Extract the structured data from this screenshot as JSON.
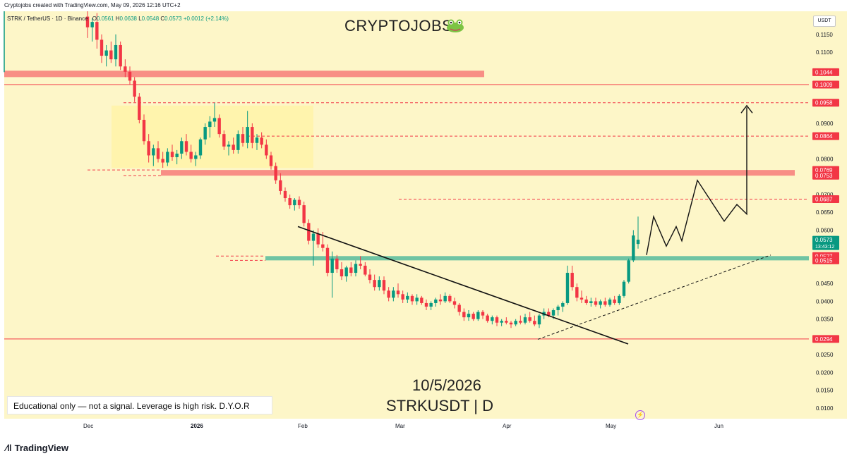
{
  "top_line": "Cryptojobs created with TradingView.com, May 09, 2026 12:16 UTC+2",
  "header": {
    "symbol": "STRK / TetherUS · 1D · Binance",
    "o_label": "O",
    "o_value": "0.0561",
    "h_label": "H",
    "h_value": "0.0638",
    "l_label": "L",
    "l_value": "0.0548",
    "c_label": "C",
    "c_value": "0.0573",
    "change": "+0.0012 (+2.14%)"
  },
  "brand": "CRYPTOJOBS",
  "currency_button": "USDT",
  "overlay": {
    "date": "10/5/2026",
    "symbol_tf": "STRKUSDT | D",
    "disclaimer": "Educational only — not a signal. Leverage is high risk. D.Y.O.R"
  },
  "footer": {
    "logo_text": "TradingView"
  },
  "colors": {
    "background": "#fdf6c8",
    "up": "#089981",
    "down": "#f23645",
    "resistance_zone": "#f7837d",
    "support_zone": "#5fbf9f",
    "highlight_box": "#fff3a8"
  },
  "icons": {
    "frog": "frog-icon",
    "bolt": "lightning-icon",
    "logo": "tradingview-logo-icon"
  },
  "chart_data": {
    "type": "candlestick",
    "title": "STRK / TetherUS · 1D · Binance",
    "x_ticks": [
      "Dec",
      "2026",
      "Feb",
      "Mar",
      "Apr",
      "May",
      "Jun"
    ],
    "y_ticks": [
      "0.1150",
      "0.1100",
      "0.1044",
      "0.1009",
      "0.0958",
      "0.0900",
      "0.0864",
      "0.0800",
      "0.0769",
      "0.0753",
      "0.0700",
      "0.0687",
      "0.0650",
      "0.0600",
      "0.0573",
      "0.0527",
      "0.0515",
      "0.0450",
      "0.0400",
      "0.0350",
      "0.0294",
      "0.0250",
      "0.0200",
      "0.0150",
      "0.0100"
    ],
    "ylim": [
      0.007,
      0.1215
    ],
    "price_labels": [
      {
        "value": 0.1044,
        "text": "0.1044",
        "color": "#f23645"
      },
      {
        "value": 0.1009,
        "text": "0.1009",
        "color": "#f23645"
      },
      {
        "value": 0.0958,
        "text": "0.0958",
        "color": "#f23645"
      },
      {
        "value": 0.0864,
        "text": "0.0864",
        "color": "#f23645"
      },
      {
        "value": 0.0769,
        "text": "0.0769",
        "color": "#f23645"
      },
      {
        "value": 0.0753,
        "text": "0.0753",
        "color": "#f23645"
      },
      {
        "value": 0.0687,
        "text": "0.0687",
        "color": "#f23645"
      },
      {
        "value": 0.0573,
        "text": "0.0573",
        "color": "#089981",
        "sub": "13:43:12"
      },
      {
        "value": 0.0527,
        "text": "0.0527",
        "color": "#f23645"
      },
      {
        "value": 0.0515,
        "text": "0.0515",
        "color": "#f23645"
      },
      {
        "value": 0.0294,
        "text": "0.0294",
        "color": "#f23645"
      }
    ],
    "zones": [
      {
        "from": 0.103,
        "to": 0.1048,
        "kind": "resistance"
      },
      {
        "from": 0.0753,
        "to": 0.0769,
        "kind": "resistance"
      },
      {
        "from": 0.0515,
        "to": 0.0527,
        "kind": "support"
      }
    ],
    "levels": [
      0.1009,
      0.0958,
      0.0864,
      0.0687,
      0.0294
    ],
    "consolidation_box": {
      "from": 0.0775,
      "to": 0.095
    },
    "candles": [
      {
        "o": 0.12,
        "h": 0.1215,
        "l": 0.114,
        "c": 0.117
      },
      {
        "o": 0.117,
        "h": 0.1195,
        "l": 0.113,
        "c": 0.1185
      },
      {
        "o": 0.1185,
        "h": 0.121,
        "l": 0.111,
        "c": 0.1135
      },
      {
        "o": 0.1135,
        "h": 0.115,
        "l": 0.107,
        "c": 0.109
      },
      {
        "o": 0.109,
        "h": 0.112,
        "l": 0.106,
        "c": 0.1105
      },
      {
        "o": 0.1105,
        "h": 0.113,
        "l": 0.107,
        "c": 0.108
      },
      {
        "o": 0.108,
        "h": 0.115,
        "l": 0.106,
        "c": 0.112
      },
      {
        "o": 0.112,
        "h": 0.113,
        "l": 0.105,
        "c": 0.106
      },
      {
        "o": 0.106,
        "h": 0.108,
        "l": 0.103,
        "c": 0.1045
      },
      {
        "o": 0.1045,
        "h": 0.106,
        "l": 0.101,
        "c": 0.102
      },
      {
        "o": 0.102,
        "h": 0.103,
        "l": 0.096,
        "c": 0.0975
      },
      {
        "o": 0.0975,
        "h": 0.0985,
        "l": 0.09,
        "c": 0.091
      },
      {
        "o": 0.091,
        "h": 0.0925,
        "l": 0.084,
        "c": 0.085
      },
      {
        "o": 0.085,
        "h": 0.087,
        "l": 0.079,
        "c": 0.081
      },
      {
        "o": 0.081,
        "h": 0.084,
        "l": 0.078,
        "c": 0.083
      },
      {
        "o": 0.083,
        "h": 0.085,
        "l": 0.079,
        "c": 0.08
      },
      {
        "o": 0.08,
        "h": 0.082,
        "l": 0.0775,
        "c": 0.079
      },
      {
        "o": 0.079,
        "h": 0.083,
        "l": 0.078,
        "c": 0.082
      },
      {
        "o": 0.082,
        "h": 0.084,
        "l": 0.0795,
        "c": 0.0805
      },
      {
        "o": 0.0805,
        "h": 0.0825,
        "l": 0.0785,
        "c": 0.0815
      },
      {
        "o": 0.0815,
        "h": 0.086,
        "l": 0.08,
        "c": 0.085
      },
      {
        "o": 0.085,
        "h": 0.087,
        "l": 0.081,
        "c": 0.082
      },
      {
        "o": 0.082,
        "h": 0.084,
        "l": 0.079,
        "c": 0.08
      },
      {
        "o": 0.08,
        "h": 0.082,
        "l": 0.078,
        "c": 0.081
      },
      {
        "o": 0.081,
        "h": 0.086,
        "l": 0.08,
        "c": 0.0855
      },
      {
        "o": 0.0855,
        "h": 0.09,
        "l": 0.084,
        "c": 0.089
      },
      {
        "o": 0.089,
        "h": 0.092,
        "l": 0.086,
        "c": 0.0905
      },
      {
        "o": 0.0905,
        "h": 0.0958,
        "l": 0.089,
        "c": 0.0915
      },
      {
        "o": 0.0915,
        "h": 0.0925,
        "l": 0.086,
        "c": 0.087
      },
      {
        "o": 0.087,
        "h": 0.088,
        "l": 0.0825,
        "c": 0.0835
      },
      {
        "o": 0.0835,
        "h": 0.085,
        "l": 0.081,
        "c": 0.084
      },
      {
        "o": 0.084,
        "h": 0.086,
        "l": 0.0815,
        "c": 0.0825
      },
      {
        "o": 0.0825,
        "h": 0.088,
        "l": 0.0815,
        "c": 0.087
      },
      {
        "o": 0.087,
        "h": 0.089,
        "l": 0.0835,
        "c": 0.0845
      },
      {
        "o": 0.0845,
        "h": 0.0935,
        "l": 0.083,
        "c": 0.089
      },
      {
        "o": 0.089,
        "h": 0.09,
        "l": 0.083,
        "c": 0.0845
      },
      {
        "o": 0.0845,
        "h": 0.087,
        "l": 0.0825,
        "c": 0.086
      },
      {
        "o": 0.086,
        "h": 0.0875,
        "l": 0.083,
        "c": 0.084
      },
      {
        "o": 0.084,
        "h": 0.0855,
        "l": 0.08,
        "c": 0.081
      },
      {
        "o": 0.081,
        "h": 0.082,
        "l": 0.077,
        "c": 0.078
      },
      {
        "o": 0.078,
        "h": 0.079,
        "l": 0.073,
        "c": 0.074
      },
      {
        "o": 0.074,
        "h": 0.076,
        "l": 0.07,
        "c": 0.071
      },
      {
        "o": 0.071,
        "h": 0.072,
        "l": 0.068,
        "c": 0.069
      },
      {
        "o": 0.069,
        "h": 0.07,
        "l": 0.066,
        "c": 0.067
      },
      {
        "o": 0.067,
        "h": 0.069,
        "l": 0.0655,
        "c": 0.0685
      },
      {
        "o": 0.0685,
        "h": 0.0695,
        "l": 0.066,
        "c": 0.067
      },
      {
        "o": 0.067,
        "h": 0.068,
        "l": 0.061,
        "c": 0.062
      },
      {
        "o": 0.062,
        "h": 0.063,
        "l": 0.056,
        "c": 0.057
      },
      {
        "o": 0.057,
        "h": 0.06,
        "l": 0.05,
        "c": 0.059
      },
      {
        "o": 0.059,
        "h": 0.0605,
        "l": 0.055,
        "c": 0.056
      },
      {
        "o": 0.056,
        "h": 0.0595,
        "l": 0.054,
        "c": 0.055
      },
      {
        "o": 0.055,
        "h": 0.056,
        "l": 0.047,
        "c": 0.048
      },
      {
        "o": 0.048,
        "h": 0.054,
        "l": 0.041,
        "c": 0.052
      },
      {
        "o": 0.052,
        "h": 0.053,
        "l": 0.048,
        "c": 0.049
      },
      {
        "o": 0.049,
        "h": 0.051,
        "l": 0.046,
        "c": 0.047
      },
      {
        "o": 0.047,
        "h": 0.05,
        "l": 0.0455,
        "c": 0.0495
      },
      {
        "o": 0.0495,
        "h": 0.051,
        "l": 0.047,
        "c": 0.048
      },
      {
        "o": 0.048,
        "h": 0.0515,
        "l": 0.047,
        "c": 0.0505
      },
      {
        "o": 0.0505,
        "h": 0.0527,
        "l": 0.049,
        "c": 0.05
      },
      {
        "o": 0.05,
        "h": 0.051,
        "l": 0.047,
        "c": 0.0475
      },
      {
        "o": 0.0475,
        "h": 0.049,
        "l": 0.045,
        "c": 0.046
      },
      {
        "o": 0.046,
        "h": 0.0475,
        "l": 0.043,
        "c": 0.044
      },
      {
        "o": 0.044,
        "h": 0.047,
        "l": 0.043,
        "c": 0.046
      },
      {
        "o": 0.046,
        "h": 0.047,
        "l": 0.042,
        "c": 0.043
      },
      {
        "o": 0.043,
        "h": 0.044,
        "l": 0.04,
        "c": 0.041
      },
      {
        "o": 0.041,
        "h": 0.044,
        "l": 0.04,
        "c": 0.043
      },
      {
        "o": 0.043,
        "h": 0.045,
        "l": 0.041,
        "c": 0.042
      },
      {
        "o": 0.042,
        "h": 0.043,
        "l": 0.0395,
        "c": 0.0405
      },
      {
        "o": 0.0405,
        "h": 0.0425,
        "l": 0.0395,
        "c": 0.0415
      },
      {
        "o": 0.0415,
        "h": 0.042,
        "l": 0.039,
        "c": 0.04
      },
      {
        "o": 0.04,
        "h": 0.042,
        "l": 0.039,
        "c": 0.041
      },
      {
        "o": 0.041,
        "h": 0.0415,
        "l": 0.039,
        "c": 0.0395
      },
      {
        "o": 0.0395,
        "h": 0.0405,
        "l": 0.0375,
        "c": 0.0385
      },
      {
        "o": 0.0385,
        "h": 0.04,
        "l": 0.0375,
        "c": 0.0395
      },
      {
        "o": 0.0395,
        "h": 0.041,
        "l": 0.0385,
        "c": 0.0405
      },
      {
        "o": 0.0405,
        "h": 0.042,
        "l": 0.039,
        "c": 0.04
      },
      {
        "o": 0.04,
        "h": 0.0425,
        "l": 0.0395,
        "c": 0.0415
      },
      {
        "o": 0.0415,
        "h": 0.042,
        "l": 0.0395,
        "c": 0.04
      },
      {
        "o": 0.04,
        "h": 0.041,
        "l": 0.038,
        "c": 0.039
      },
      {
        "o": 0.039,
        "h": 0.0395,
        "l": 0.036,
        "c": 0.037
      },
      {
        "o": 0.037,
        "h": 0.038,
        "l": 0.0345,
        "c": 0.0355
      },
      {
        "o": 0.0355,
        "h": 0.0375,
        "l": 0.0345,
        "c": 0.0365
      },
      {
        "o": 0.0365,
        "h": 0.037,
        "l": 0.0345,
        "c": 0.035
      },
      {
        "o": 0.035,
        "h": 0.0375,
        "l": 0.0345,
        "c": 0.037
      },
      {
        "o": 0.037,
        "h": 0.0375,
        "l": 0.035,
        "c": 0.036
      },
      {
        "o": 0.036,
        "h": 0.0365,
        "l": 0.034,
        "c": 0.0345
      },
      {
        "o": 0.0345,
        "h": 0.036,
        "l": 0.0335,
        "c": 0.0355
      },
      {
        "o": 0.0355,
        "h": 0.036,
        "l": 0.033,
        "c": 0.034
      },
      {
        "o": 0.034,
        "h": 0.035,
        "l": 0.033,
        "c": 0.0345
      },
      {
        "o": 0.0345,
        "h": 0.0355,
        "l": 0.0335,
        "c": 0.034
      },
      {
        "o": 0.034,
        "h": 0.0345,
        "l": 0.0325,
        "c": 0.0335
      },
      {
        "o": 0.0335,
        "h": 0.035,
        "l": 0.033,
        "c": 0.0345
      },
      {
        "o": 0.0345,
        "h": 0.036,
        "l": 0.0335,
        "c": 0.034
      },
      {
        "o": 0.034,
        "h": 0.0365,
        "l": 0.0335,
        "c": 0.0355
      },
      {
        "o": 0.0355,
        "h": 0.037,
        "l": 0.034,
        "c": 0.0345
      },
      {
        "o": 0.0345,
        "h": 0.036,
        "l": 0.033,
        "c": 0.0335
      },
      {
        "o": 0.0335,
        "h": 0.0365,
        "l": 0.0325,
        "c": 0.036
      },
      {
        "o": 0.036,
        "h": 0.038,
        "l": 0.035,
        "c": 0.037
      },
      {
        "o": 0.037,
        "h": 0.038,
        "l": 0.0355,
        "c": 0.036
      },
      {
        "o": 0.036,
        "h": 0.038,
        "l": 0.035,
        "c": 0.0375
      },
      {
        "o": 0.0375,
        "h": 0.039,
        "l": 0.036,
        "c": 0.0385
      },
      {
        "o": 0.0385,
        "h": 0.04,
        "l": 0.037,
        "c": 0.0395
      },
      {
        "o": 0.0395,
        "h": 0.05,
        "l": 0.039,
        "c": 0.048
      },
      {
        "o": 0.048,
        "h": 0.05,
        "l": 0.043,
        "c": 0.044
      },
      {
        "o": 0.044,
        "h": 0.045,
        "l": 0.04,
        "c": 0.041
      },
      {
        "o": 0.041,
        "h": 0.043,
        "l": 0.0395,
        "c": 0.0405
      },
      {
        "o": 0.0405,
        "h": 0.0415,
        "l": 0.039,
        "c": 0.0395
      },
      {
        "o": 0.0395,
        "h": 0.041,
        "l": 0.0385,
        "c": 0.04
      },
      {
        "o": 0.04,
        "h": 0.041,
        "l": 0.0385,
        "c": 0.039
      },
      {
        "o": 0.039,
        "h": 0.0405,
        "l": 0.038,
        "c": 0.04
      },
      {
        "o": 0.04,
        "h": 0.041,
        "l": 0.0385,
        "c": 0.039
      },
      {
        "o": 0.039,
        "h": 0.041,
        "l": 0.0385,
        "c": 0.0405
      },
      {
        "o": 0.0405,
        "h": 0.0415,
        "l": 0.039,
        "c": 0.0395
      },
      {
        "o": 0.0395,
        "h": 0.042,
        "l": 0.039,
        "c": 0.0415
      },
      {
        "o": 0.0415,
        "h": 0.046,
        "l": 0.041,
        "c": 0.0455
      },
      {
        "o": 0.0455,
        "h": 0.052,
        "l": 0.045,
        "c": 0.0515
      },
      {
        "o": 0.0515,
        "h": 0.06,
        "l": 0.051,
        "c": 0.0585
      },
      {
        "o": 0.0561,
        "h": 0.0638,
        "l": 0.0548,
        "c": 0.0573
      }
    ]
  }
}
